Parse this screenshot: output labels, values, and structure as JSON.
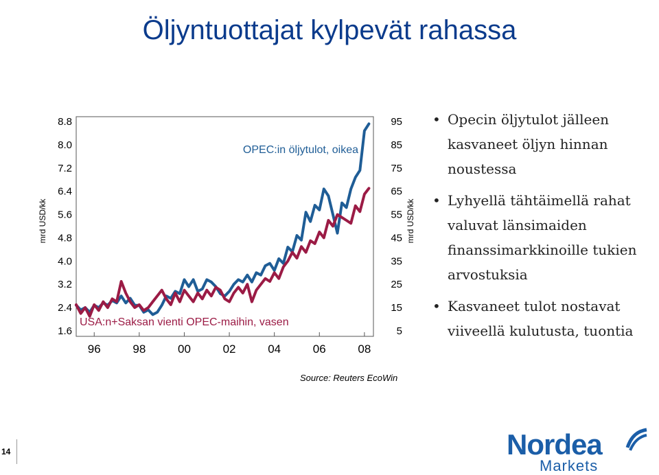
{
  "title": "Öljyntuottajat kylpevät rahassa",
  "source": "Source: Reuters EcoWin",
  "page_number": "14",
  "bullets": [
    "Opecin öljytulot jälleen kasvaneet öljyn hinnan noustessa",
    "Lyhyellä tähtäimellä rahat valuvat länsimaiden finanssimarkkinoille tukien arvostuksia",
    "Kasvaneet tulot nostavat viiveellä kulutusta, tuontia"
  ],
  "logo": {
    "word": "Nordea",
    "sub": "Markets"
  },
  "chart_data": {
    "type": "line",
    "ylabel_left": "mrd USD/kk",
    "ylabel_right": "mrd USD/kk",
    "x_ticks": [
      "96",
      "98",
      "00",
      "02",
      "04",
      "06",
      "08"
    ],
    "xlim": [
      1995.2,
      2008.4
    ],
    "y_left_ticks": [
      "8.8",
      "8.0",
      "7.2",
      "6.4",
      "5.6",
      "4.8",
      "4.0",
      "3.2",
      "2.4",
      "1.6"
    ],
    "y_left_range": [
      1.6,
      8.8
    ],
    "y_right_ticks": [
      "95",
      "85",
      "75",
      "65",
      "55",
      "45",
      "35",
      "25",
      "15",
      "5"
    ],
    "y_right_range": [
      5,
      95
    ],
    "colors": {
      "opec": "#1f5d96",
      "usa": "#9b1b45"
    },
    "series": [
      {
        "name": "OPEC:in öljytulot,  oikea",
        "axis": "right",
        "label_pos": "top",
        "x": [
          1995.2,
          1995.4,
          1995.6,
          1995.8,
          1996.0,
          1996.2,
          1996.4,
          1996.6,
          1996.8,
          1997.0,
          1997.2,
          1997.4,
          1997.6,
          1997.8,
          1998.0,
          1998.2,
          1998.4,
          1998.6,
          1998.8,
          1999.0,
          1999.2,
          1999.4,
          1999.6,
          1999.8,
          2000.0,
          2000.2,
          2000.4,
          2000.6,
          2000.8,
          2001.0,
          2001.2,
          2001.4,
          2001.6,
          2001.8,
          2002.0,
          2002.2,
          2002.4,
          2002.6,
          2002.8,
          2003.0,
          2003.2,
          2003.4,
          2003.6,
          2003.8,
          2004.0,
          2004.2,
          2004.4,
          2004.6,
          2004.8,
          2005.0,
          2005.2,
          2005.4,
          2005.6,
          2005.8,
          2006.0,
          2006.2,
          2006.4,
          2006.6,
          2006.8,
          2007.0,
          2007.2,
          2007.4,
          2007.6,
          2007.8,
          2008.0,
          2008.2
        ],
        "values": [
          16,
          14,
          15,
          13,
          16,
          15,
          17,
          16,
          18,
          17,
          20,
          17,
          19,
          16,
          16,
          13,
          14,
          12,
          13,
          16,
          20,
          19,
          22,
          21,
          27,
          24,
          27,
          22,
          23,
          27,
          26,
          24,
          21,
          20,
          22,
          25,
          27,
          26,
          29,
          26,
          30,
          29,
          33,
          34,
          31,
          36,
          34,
          41,
          39,
          46,
          44,
          56,
          52,
          59,
          57,
          66,
          63,
          55,
          47,
          60,
          58,
          66,
          71,
          74,
          91,
          94
        ]
      },
      {
        "name": "USA:n+Saksan vienti OPEC-maihin, vasen",
        "axis": "left",
        "label_pos": "bottom",
        "x": [
          1995.2,
          1995.4,
          1995.6,
          1995.8,
          1996.0,
          1996.2,
          1996.4,
          1996.6,
          1996.8,
          1997.0,
          1997.2,
          1997.4,
          1997.6,
          1997.8,
          1998.0,
          1998.2,
          1998.4,
          1998.6,
          1998.8,
          1999.0,
          1999.2,
          1999.4,
          1999.6,
          1999.8,
          2000.0,
          2000.2,
          2000.4,
          2000.6,
          2000.8,
          2001.0,
          2001.2,
          2001.4,
          2001.6,
          2001.8,
          2002.0,
          2002.2,
          2002.4,
          2002.6,
          2002.8,
          2003.0,
          2003.2,
          2003.4,
          2003.6,
          2003.8,
          2004.0,
          2004.2,
          2004.4,
          2004.6,
          2004.8,
          2005.0,
          2005.2,
          2005.4,
          2005.6,
          2005.8,
          2006.0,
          2006.2,
          2006.4,
          2006.6,
          2006.8,
          2007.0,
          2007.2,
          2007.4,
          2007.6,
          2007.8,
          2008.0,
          2008.2
        ],
        "values": [
          2.5,
          2.2,
          2.4,
          2.1,
          2.5,
          2.3,
          2.6,
          2.4,
          2.7,
          2.6,
          3.3,
          2.9,
          2.6,
          2.4,
          2.5,
          2.3,
          2.4,
          2.6,
          2.8,
          3.0,
          2.7,
          2.5,
          2.9,
          2.6,
          3.0,
          2.8,
          2.6,
          2.9,
          2.7,
          3.0,
          2.8,
          3.1,
          3.0,
          2.7,
          2.6,
          2.9,
          3.1,
          2.9,
          3.2,
          2.6,
          3.0,
          3.2,
          3.4,
          3.3,
          3.6,
          3.4,
          3.8,
          4.0,
          4.3,
          4.1,
          4.5,
          4.3,
          4.7,
          4.6,
          5.0,
          4.8,
          5.4,
          5.2,
          5.6,
          5.5,
          5.4,
          5.3,
          5.9,
          5.7,
          6.3,
          6.5
        ]
      }
    ]
  }
}
